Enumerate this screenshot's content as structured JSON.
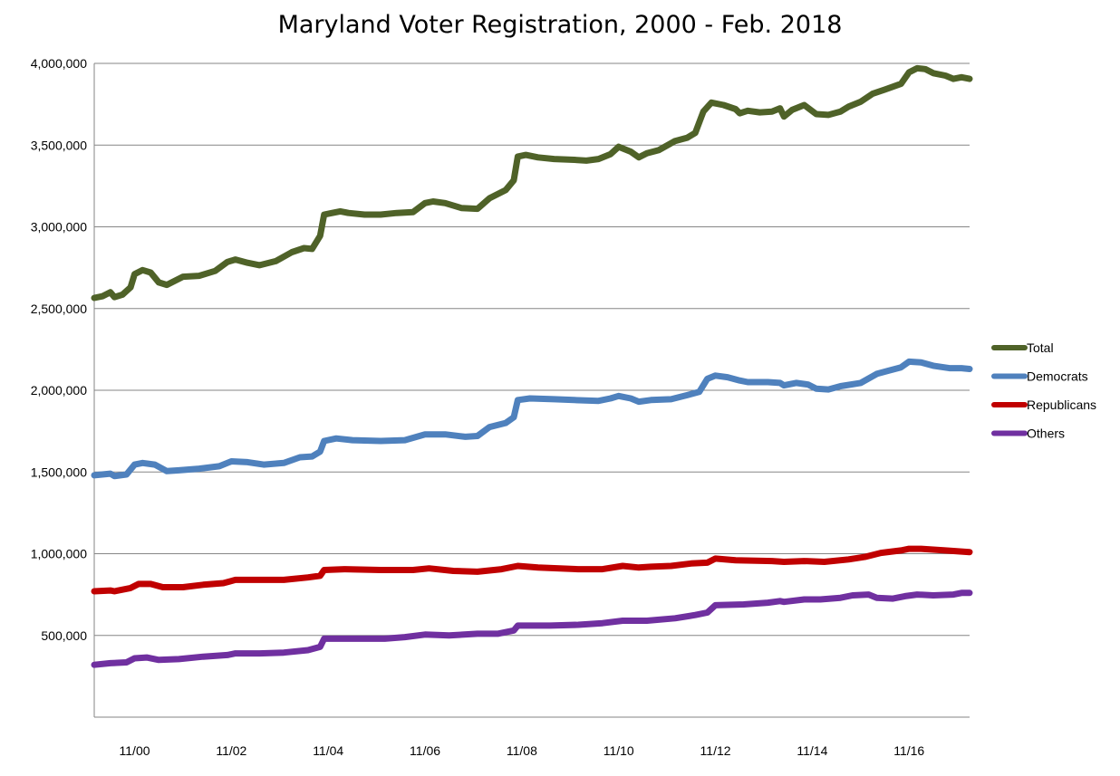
{
  "chart_data": {
    "type": "line",
    "title": "Maryland Voter Registration, 2000 - Feb. 2018",
    "xlabel": "",
    "ylabel": "",
    "x_range": [
      "2000-01",
      "2018-02"
    ],
    "ylim": [
      0,
      4000000
    ],
    "y_ticks": [
      500000,
      1000000,
      1500000,
      2000000,
      2500000,
      3000000,
      3500000,
      4000000
    ],
    "y_tick_labels": [
      "500,000",
      "1,000,000",
      "1,500,000",
      "2,000,000",
      "2,500,000",
      "3,000,000",
      "3,500,000",
      "4,000,000"
    ],
    "x_ticks": [
      "2000-11",
      "2002-11",
      "2004-11",
      "2006-11",
      "2008-11",
      "2010-11",
      "2012-11",
      "2014-11",
      "2016-11"
    ],
    "x_tick_labels": [
      "11/00",
      "11/02",
      "11/04",
      "11/06",
      "11/08",
      "11/10",
      "11/12",
      "11/14",
      "11/16"
    ],
    "grid": "horizontal",
    "legend_position": "right",
    "series": [
      {
        "name": "Total",
        "color": "#4f6228",
        "points": [
          [
            "2000-01",
            2565000
          ],
          [
            "2000-03",
            2575000
          ],
          [
            "2000-05",
            2600000
          ],
          [
            "2000-06",
            2570000
          ],
          [
            "2000-08",
            2585000
          ],
          [
            "2000-10",
            2630000
          ],
          [
            "2000-11",
            2710000
          ],
          [
            "2001-01",
            2735000
          ],
          [
            "2001-03",
            2720000
          ],
          [
            "2001-05",
            2660000
          ],
          [
            "2001-07",
            2645000
          ],
          [
            "2001-09",
            2670000
          ],
          [
            "2001-11",
            2695000
          ],
          [
            "2002-03",
            2700000
          ],
          [
            "2002-07",
            2730000
          ],
          [
            "2002-10",
            2785000
          ],
          [
            "2002-12",
            2800000
          ],
          [
            "2003-03",
            2780000
          ],
          [
            "2003-06",
            2765000
          ],
          [
            "2003-10",
            2790000
          ],
          [
            "2004-02",
            2845000
          ],
          [
            "2004-05",
            2870000
          ],
          [
            "2004-07",
            2865000
          ],
          [
            "2004-09",
            2945000
          ],
          [
            "2004-10",
            3075000
          ],
          [
            "2004-12",
            3085000
          ],
          [
            "2005-02",
            3095000
          ],
          [
            "2005-04",
            3085000
          ],
          [
            "2005-08",
            3075000
          ],
          [
            "2005-12",
            3075000
          ],
          [
            "2006-04",
            3085000
          ],
          [
            "2006-08",
            3090000
          ],
          [
            "2006-11",
            3145000
          ],
          [
            "2007-01",
            3155000
          ],
          [
            "2007-04",
            3145000
          ],
          [
            "2007-08",
            3115000
          ],
          [
            "2007-12",
            3110000
          ],
          [
            "2008-03",
            3175000
          ],
          [
            "2008-07",
            3225000
          ],
          [
            "2008-09",
            3285000
          ],
          [
            "2008-10",
            3430000
          ],
          [
            "2008-12",
            3440000
          ],
          [
            "2009-03",
            3425000
          ],
          [
            "2009-07",
            3415000
          ],
          [
            "2009-12",
            3410000
          ],
          [
            "2010-03",
            3405000
          ],
          [
            "2010-06",
            3415000
          ],
          [
            "2010-09",
            3445000
          ],
          [
            "2010-11",
            3490000
          ],
          [
            "2011-02",
            3460000
          ],
          [
            "2011-04",
            3425000
          ],
          [
            "2011-06",
            3450000
          ],
          [
            "2011-09",
            3470000
          ],
          [
            "2012-01",
            3525000
          ],
          [
            "2012-04",
            3545000
          ],
          [
            "2012-06",
            3575000
          ],
          [
            "2012-08",
            3705000
          ],
          [
            "2012-10",
            3760000
          ],
          [
            "2013-01",
            3745000
          ],
          [
            "2013-04",
            3720000
          ],
          [
            "2013-05",
            3695000
          ],
          [
            "2013-07",
            3710000
          ],
          [
            "2013-10",
            3700000
          ],
          [
            "2014-01",
            3705000
          ],
          [
            "2014-03",
            3725000
          ],
          [
            "2014-04",
            3675000
          ],
          [
            "2014-06",
            3715000
          ],
          [
            "2014-09",
            3745000
          ],
          [
            "2014-12",
            3690000
          ],
          [
            "2015-03",
            3685000
          ],
          [
            "2015-06",
            3705000
          ],
          [
            "2015-08",
            3735000
          ],
          [
            "2015-11",
            3765000
          ],
          [
            "2016-02",
            3815000
          ],
          [
            "2016-05",
            3840000
          ],
          [
            "2016-09",
            3875000
          ],
          [
            "2016-11",
            3945000
          ],
          [
            "2017-01",
            3970000
          ],
          [
            "2017-03",
            3965000
          ],
          [
            "2017-05",
            3940000
          ],
          [
            "2017-08",
            3925000
          ],
          [
            "2017-10",
            3905000
          ],
          [
            "2017-12",
            3915000
          ],
          [
            "2018-02",
            3905000
          ]
        ]
      },
      {
        "name": "Democrats",
        "color": "#4f81bd",
        "points": [
          [
            "2000-01",
            1480000
          ],
          [
            "2000-05",
            1490000
          ],
          [
            "2000-06",
            1475000
          ],
          [
            "2000-09",
            1485000
          ],
          [
            "2000-11",
            1545000
          ],
          [
            "2001-01",
            1555000
          ],
          [
            "2001-04",
            1545000
          ],
          [
            "2001-07",
            1505000
          ],
          [
            "2001-10",
            1510000
          ],
          [
            "2002-03",
            1520000
          ],
          [
            "2002-08",
            1535000
          ],
          [
            "2002-11",
            1565000
          ],
          [
            "2003-03",
            1560000
          ],
          [
            "2003-07",
            1545000
          ],
          [
            "2003-12",
            1555000
          ],
          [
            "2004-04",
            1590000
          ],
          [
            "2004-07",
            1595000
          ],
          [
            "2004-09",
            1625000
          ],
          [
            "2004-10",
            1690000
          ],
          [
            "2005-01",
            1705000
          ],
          [
            "2005-05",
            1695000
          ],
          [
            "2005-12",
            1690000
          ],
          [
            "2006-06",
            1695000
          ],
          [
            "2006-11",
            1730000
          ],
          [
            "2007-04",
            1730000
          ],
          [
            "2007-09",
            1715000
          ],
          [
            "2007-12",
            1720000
          ],
          [
            "2008-03",
            1775000
          ],
          [
            "2008-07",
            1800000
          ],
          [
            "2008-09",
            1835000
          ],
          [
            "2008-10",
            1940000
          ],
          [
            "2009-01",
            1950000
          ],
          [
            "2009-07",
            1945000
          ],
          [
            "2009-12",
            1940000
          ],
          [
            "2010-06",
            1935000
          ],
          [
            "2010-09",
            1950000
          ],
          [
            "2010-11",
            1965000
          ],
          [
            "2011-02",
            1950000
          ],
          [
            "2011-04",
            1930000
          ],
          [
            "2011-07",
            1940000
          ],
          [
            "2011-12",
            1945000
          ],
          [
            "2012-04",
            1970000
          ],
          [
            "2012-07",
            1990000
          ],
          [
            "2012-09",
            2070000
          ],
          [
            "2012-11",
            2090000
          ],
          [
            "2013-02",
            2080000
          ],
          [
            "2013-05",
            2060000
          ],
          [
            "2013-07",
            2050000
          ],
          [
            "2013-12",
            2050000
          ],
          [
            "2014-03",
            2045000
          ],
          [
            "2014-04",
            2030000
          ],
          [
            "2014-07",
            2045000
          ],
          [
            "2014-10",
            2035000
          ],
          [
            "2014-12",
            2010000
          ],
          [
            "2015-03",
            2005000
          ],
          [
            "2015-06",
            2025000
          ],
          [
            "2015-11",
            2045000
          ],
          [
            "2016-03",
            2100000
          ],
          [
            "2016-06",
            2120000
          ],
          [
            "2016-09",
            2140000
          ],
          [
            "2016-11",
            2175000
          ],
          [
            "2017-02",
            2170000
          ],
          [
            "2017-05",
            2150000
          ],
          [
            "2017-09",
            2135000
          ],
          [
            "2017-12",
            2135000
          ],
          [
            "2018-02",
            2130000
          ]
        ]
      },
      {
        "name": "Republicans",
        "color": "#c00000",
        "points": [
          [
            "2000-01",
            770000
          ],
          [
            "2000-05",
            775000
          ],
          [
            "2000-06",
            770000
          ],
          [
            "2000-10",
            790000
          ],
          [
            "2000-12",
            815000
          ],
          [
            "2001-03",
            815000
          ],
          [
            "2001-06",
            795000
          ],
          [
            "2001-11",
            795000
          ],
          [
            "2002-04",
            810000
          ],
          [
            "2002-09",
            820000
          ],
          [
            "2002-12",
            840000
          ],
          [
            "2003-05",
            840000
          ],
          [
            "2003-12",
            840000
          ],
          [
            "2004-06",
            855000
          ],
          [
            "2004-09",
            865000
          ],
          [
            "2004-10",
            900000
          ],
          [
            "2005-03",
            905000
          ],
          [
            "2005-12",
            900000
          ],
          [
            "2006-08",
            900000
          ],
          [
            "2006-12",
            910000
          ],
          [
            "2007-06",
            895000
          ],
          [
            "2007-12",
            890000
          ],
          [
            "2008-06",
            905000
          ],
          [
            "2008-10",
            925000
          ],
          [
            "2009-03",
            915000
          ],
          [
            "2010-01",
            905000
          ],
          [
            "2010-07",
            905000
          ],
          [
            "2010-12",
            925000
          ],
          [
            "2011-04",
            915000
          ],
          [
            "2011-07",
            920000
          ],
          [
            "2011-12",
            925000
          ],
          [
            "2012-05",
            940000
          ],
          [
            "2012-09",
            945000
          ],
          [
            "2012-11",
            970000
          ],
          [
            "2013-04",
            960000
          ],
          [
            "2014-01",
            955000
          ],
          [
            "2014-04",
            950000
          ],
          [
            "2014-09",
            955000
          ],
          [
            "2015-02",
            950000
          ],
          [
            "2015-08",
            965000
          ],
          [
            "2015-12",
            980000
          ],
          [
            "2016-04",
            1005000
          ],
          [
            "2016-09",
            1020000
          ],
          [
            "2016-11",
            1030000
          ],
          [
            "2017-02",
            1030000
          ],
          [
            "2017-08",
            1020000
          ],
          [
            "2018-02",
            1010000
          ]
        ]
      },
      {
        "name": "Others",
        "color": "#7030a0",
        "points": [
          [
            "2000-01",
            320000
          ],
          [
            "2000-05",
            330000
          ],
          [
            "2000-09",
            335000
          ],
          [
            "2000-11",
            360000
          ],
          [
            "2001-02",
            365000
          ],
          [
            "2001-05",
            350000
          ],
          [
            "2001-10",
            355000
          ],
          [
            "2002-04",
            370000
          ],
          [
            "2002-10",
            380000
          ],
          [
            "2002-12",
            390000
          ],
          [
            "2003-06",
            390000
          ],
          [
            "2003-12",
            395000
          ],
          [
            "2004-06",
            410000
          ],
          [
            "2004-09",
            430000
          ],
          [
            "2004-10",
            480000
          ],
          [
            "2005-04",
            480000
          ],
          [
            "2006-01",
            480000
          ],
          [
            "2006-06",
            490000
          ],
          [
            "2006-11",
            505000
          ],
          [
            "2007-05",
            500000
          ],
          [
            "2007-12",
            510000
          ],
          [
            "2008-05",
            510000
          ],
          [
            "2008-09",
            530000
          ],
          [
            "2008-10",
            560000
          ],
          [
            "2009-06",
            560000
          ],
          [
            "2010-01",
            565000
          ],
          [
            "2010-07",
            575000
          ],
          [
            "2010-12",
            590000
          ],
          [
            "2011-06",
            590000
          ],
          [
            "2012-01",
            605000
          ],
          [
            "2012-06",
            625000
          ],
          [
            "2012-09",
            640000
          ],
          [
            "2012-11",
            685000
          ],
          [
            "2013-06",
            690000
          ],
          [
            "2013-12",
            700000
          ],
          [
            "2014-03",
            710000
          ],
          [
            "2014-04",
            705000
          ],
          [
            "2014-09",
            720000
          ],
          [
            "2015-01",
            720000
          ],
          [
            "2015-06",
            730000
          ],
          [
            "2015-09",
            745000
          ],
          [
            "2016-01",
            750000
          ],
          [
            "2016-03",
            730000
          ],
          [
            "2016-07",
            725000
          ],
          [
            "2016-10",
            740000
          ],
          [
            "2017-01",
            750000
          ],
          [
            "2017-05",
            745000
          ],
          [
            "2017-10",
            750000
          ],
          [
            "2017-12",
            760000
          ],
          [
            "2018-02",
            760000
          ]
        ]
      }
    ]
  }
}
